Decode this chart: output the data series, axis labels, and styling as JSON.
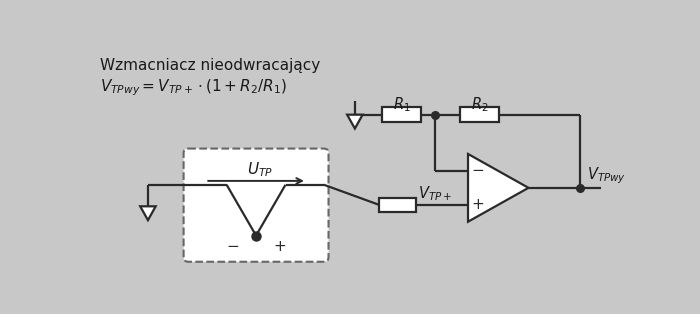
{
  "bg_color": "#c8c8c8",
  "line_color": "#2a2a2a",
  "text_color": "#1a1a1a",
  "title_line1": "Wzmacniacz nieodwracający",
  "lw": 1.6
}
